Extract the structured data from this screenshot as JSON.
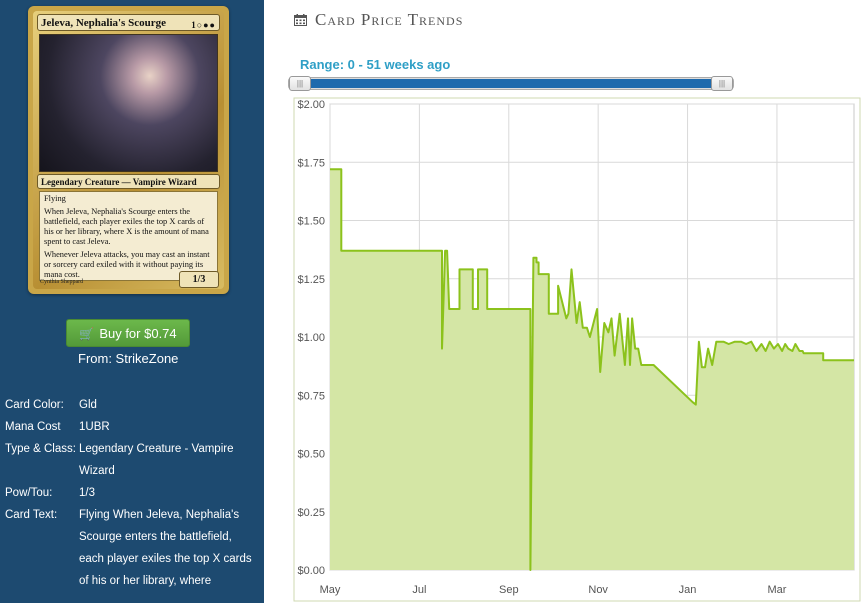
{
  "card": {
    "name": "Jeleva, Nephalia's Scourge",
    "mana_symbols": "1○●●",
    "type_line": "Legendary Creature — Vampire Wizard",
    "text_1": "Flying",
    "text_2": "When Jeleva, Nephalia's Scourge enters the battlefield, each player exiles the top X cards of his or her library, where X is the amount of mana spent to cast Jeleva.",
    "text_3": "Whenever Jeleva attacks, you may cast an instant or sorcery card exiled with it without paying its mana cost.",
    "power_toughness": "1/3",
    "artist": "Cynthia Sheppard"
  },
  "buy": {
    "label": "Buy for $0.74",
    "from": "From: StrikeZone"
  },
  "details": [
    {
      "key": "Card Color:",
      "value": "Gld"
    },
    {
      "key": "Mana Cost",
      "value": "1UBR"
    },
    {
      "key": "Type & Class:",
      "value": "Legendary Creature - Vampire Wizard"
    },
    {
      "key": "Pow/Tou:",
      "value": "1/3"
    },
    {
      "key": "Card Text:",
      "value": "Flying When Jeleva, Nephalia's Scourge enters the battlefield, each player exiles the top X cards of his or her library, where"
    }
  ],
  "main": {
    "title": "Card Price Trends"
  },
  "slider": {
    "label": "Range: 0 - 51 weeks ago",
    "from_weeks": 0,
    "to_weeks": 51,
    "handle_glyph": "|||"
  },
  "colors": {
    "line": "#8cc21c",
    "fill": "#d4e6a5",
    "sidebar": "#1d4a70",
    "accent": "#2f9fc6",
    "buy": "#5fa842"
  },
  "chart_data": {
    "type": "area",
    "title": "",
    "xlabel": "",
    "ylabel": "",
    "ylim": [
      0,
      2
    ],
    "yticks": [
      "$0.00",
      "$0.25",
      "$0.50",
      "$0.75",
      "$1.00",
      "$1.25",
      "$1.50",
      "$1.75",
      "$2.00"
    ],
    "yticks_values": [
      0,
      0.25,
      0.5,
      0.75,
      1.0,
      1.25,
      1.5,
      1.75,
      2.0
    ],
    "xticks": [
      "May",
      "Jul",
      "Sep",
      "Nov",
      "Jan",
      "Mar"
    ],
    "xticks_weeks": [
      0,
      8.7,
      17.4,
      26.1,
      34.8,
      43.5
    ],
    "x_unit": "weeks",
    "xlim": [
      0,
      51
    ],
    "grid": true,
    "series": [
      {
        "x": [
          0,
          1.1,
          1.1,
          6.9,
          6.9,
          10.9,
          10.9,
          11.2,
          11.4,
          11.6,
          11.8,
          12.6,
          12.6,
          13.9,
          13.9,
          14.4,
          14.4,
          15.3,
          15.3,
          16.3,
          16.3,
          19.5,
          19.5,
          19.8,
          20.1,
          20.1,
          20.3,
          20.3,
          21.3,
          21.3,
          22.2,
          22.2,
          23.0,
          23.2,
          23.5,
          24.0,
          24.3,
          24.6,
          25.0,
          25.3,
          26.0,
          26.3,
          26.7,
          27.1,
          27.4,
          27.7,
          28.2,
          28.7,
          29.0,
          29.2,
          29.4,
          29.7,
          30.0,
          30.3,
          30.6,
          30.9,
          31.2,
          31.5,
          35.3,
          35.6,
          35.9,
          36.2,
          36.5,
          36.8,
          37.2,
          37.6,
          37.8,
          38.0,
          38.3,
          38.8,
          39.4,
          40.0,
          40.5,
          41.0,
          41.5,
          42.0,
          42.4,
          42.8,
          43.2,
          43.6,
          44.0,
          44.3,
          44.6,
          45.0,
          45.3,
          45.7,
          46.0,
          46.1,
          46.1,
          48.0,
          48.0,
          51.0
        ],
        "y": [
          1.72,
          1.72,
          1.37,
          1.37,
          1.37,
          1.37,
          0.95,
          1.37,
          1.37,
          1.12,
          1.12,
          1.12,
          1.29,
          1.29,
          1.12,
          1.12,
          1.29,
          1.29,
          1.12,
          1.12,
          1.12,
          1.12,
          0.0,
          1.34,
          1.34,
          1.32,
          1.32,
          1.27,
          1.27,
          1.1,
          1.1,
          1.22,
          1.08,
          1.1,
          1.29,
          1.06,
          1.15,
          1.04,
          1.04,
          1.0,
          1.12,
          0.85,
          1.06,
          1.02,
          1.08,
          0.92,
          1.1,
          0.88,
          1.08,
          0.88,
          1.08,
          0.95,
          0.95,
          0.88,
          0.88,
          0.88,
          0.88,
          0.88,
          0.72,
          0.71,
          0.98,
          0.87,
          0.87,
          0.95,
          0.88,
          0.98,
          0.98,
          0.98,
          0.98,
          0.97,
          0.98,
          0.98,
          0.97,
          0.98,
          0.94,
          0.97,
          0.94,
          0.98,
          0.95,
          0.97,
          0.94,
          0.97,
          0.95,
          0.94,
          0.97,
          0.94,
          0.94,
          0.93,
          0.93,
          0.93,
          0.9,
          0.9
        ]
      }
    ]
  }
}
